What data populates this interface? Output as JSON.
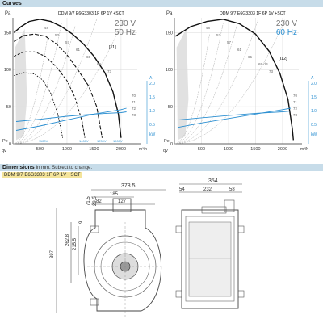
{
  "sections": {
    "curves": "Curves",
    "dimensions": "Dimensions",
    "dimensions_note": "in mm. Subject to change."
  },
  "chip_label": "DDM 9/7 E6G3303 1F 6P 1V +SCT",
  "chart_data": [
    {
      "type": "line",
      "title": "DDM 9/7 E6G3303 1F 6P 1V +SCT",
      "voltage": "230 V",
      "frequency": "50 Hz",
      "ylabel": "Pa",
      "xlabel": "m³/h",
      "qv_label": "qv",
      "pe_label": "Pe",
      "curve_label": "[11]",
      "x_ticks": [
        500,
        1000,
        1500,
        2000
      ],
      "y_ticks": [
        0,
        50,
        100,
        150
      ],
      "xlim": [
        0,
        2300
      ],
      "ylim": [
        0,
        170
      ],
      "right_axis_ticks": [
        "2.0",
        "1.5",
        "1.0",
        "0.5"
      ],
      "right_axis_labels": [
        "A",
        "kW"
      ],
      "efficiency_labels": [
        "70",
        "71",
        "72",
        "73"
      ],
      "speed_labels": [
        "1100V",
        "1400V",
        "1700V",
        "1900V"
      ],
      "sound_labels": [
        "48",
        "53",
        "57",
        "61",
        "65",
        "69",
        "73"
      ],
      "series": [
        {
          "values": [
            [
              20,
              150
            ],
            [
              150,
              158
            ],
            [
              300,
              165
            ],
            [
              500,
              168
            ],
            [
              700,
              165
            ],
            [
              900,
              158
            ],
            [
              1100,
              148
            ],
            [
              1300,
              135
            ],
            [
              1500,
              118
            ],
            [
              1700,
              96
            ],
            [
              1850,
              70
            ],
            [
              1950,
              40
            ],
            [
              2000,
              8
            ]
          ]
        },
        {
          "values": [
            [
              20,
              138
            ],
            [
              200,
              146
            ],
            [
              400,
              148
            ],
            [
              600,
              145
            ],
            [
              800,
              135
            ],
            [
              1000,
              120
            ],
            [
              1200,
              100
            ],
            [
              1400,
              78
            ],
            [
              1550,
              50
            ],
            [
              1650,
              8
            ]
          ]
        },
        {
          "values": [
            [
              20,
              118
            ],
            [
              200,
              124
            ],
            [
              400,
              124
            ],
            [
              600,
              118
            ],
            [
              800,
              104
            ],
            [
              1000,
              85
            ],
            [
              1150,
              62
            ],
            [
              1280,
              30
            ],
            [
              1330,
              8
            ]
          ]
        },
        {
          "values": [
            [
              20,
              92
            ],
            [
              200,
              96
            ],
            [
              400,
              94
            ],
            [
              550,
              86
            ],
            [
              700,
              68
            ],
            [
              830,
              40
            ],
            [
              920,
              8
            ]
          ]
        },
        {
          "values": [
            [
              60,
              18
            ],
            [
              500,
              24
            ],
            [
              1000,
              32
            ],
            [
              1500,
              40
            ],
            [
              2000,
              46
            ],
            [
              2100,
              48
            ]
          ]
        },
        {
          "values": [
            [
              60,
              30
            ],
            [
              500,
              33
            ],
            [
              1000,
              37
            ],
            [
              1500,
              40
            ],
            [
              2000,
              42
            ],
            [
              2100,
              43
            ]
          ]
        }
      ]
    },
    {
      "type": "line",
      "title": "DDM 9/7 E6G3303 1F 6P 1V +SCT",
      "voltage": "230 V",
      "frequency": "60 Hz",
      "ylabel": "Pa",
      "xlabel": "m³/h",
      "qv_label": "qv",
      "pe_label": "Pe",
      "curve_label": "[I12]",
      "x_ticks": [
        500,
        1000,
        1500,
        2000
      ],
      "y_ticks": [
        0,
        50,
        100,
        150
      ],
      "xlim": [
        0,
        2300
      ],
      "ylim": [
        0,
        170
      ],
      "right_axis_ticks": [
        "2.0",
        "1.5",
        "1.0",
        "0.5"
      ],
      "right_axis_labels": [
        "A",
        "kW"
      ],
      "efficiency_labels": [
        "70",
        "71",
        "72",
        "73"
      ],
      "sound_labels": [
        "48",
        "53",
        "57",
        "61",
        "65",
        "69 dB",
        "73"
      ],
      "series": [
        {
          "values": [
            [
              20,
              145
            ],
            [
              300,
              158
            ],
            [
              600,
              165
            ],
            [
              900,
              168
            ],
            [
              1200,
              162
            ],
            [
              1500,
              148
            ],
            [
              1750,
              125
            ],
            [
              1950,
              95
            ],
            [
              2100,
              60
            ],
            [
              2180,
              20
            ],
            [
              2200,
              5
            ]
          ]
        },
        {
          "values": [
            [
              60,
              22
            ],
            [
              500,
              28
            ],
            [
              1000,
              34
            ],
            [
              1500,
              40
            ],
            [
              2000,
              46
            ],
            [
              2150,
              48
            ]
          ]
        },
        {
          "values": [
            [
              60,
              32
            ],
            [
              500,
              35
            ],
            [
              1000,
              38
            ],
            [
              1500,
              41
            ],
            [
              2000,
              43
            ],
            [
              2150,
              44
            ]
          ]
        }
      ]
    }
  ],
  "dimensions": {
    "front": {
      "overall_width": "378.5",
      "top_185": "185",
      "top_82": "82",
      "top_127": "127",
      "left_715": "71.5",
      "left_295": "29.5",
      "height_397": "397",
      "height_2628": "262.8",
      "height_2155": "215.5",
      "dia_9": "9"
    },
    "side": {
      "overall": "354",
      "left_54": "54",
      "center_232": "232",
      "right_58": "58"
    }
  }
}
